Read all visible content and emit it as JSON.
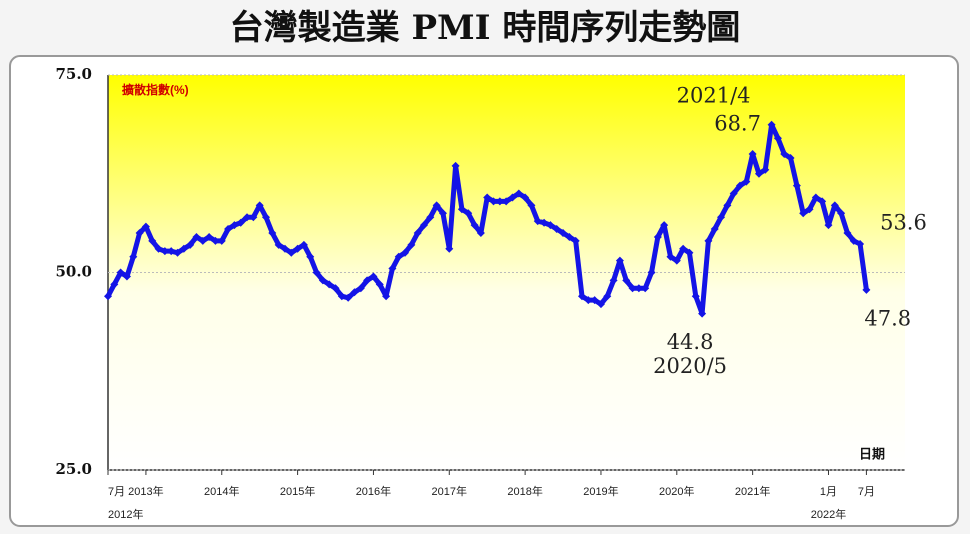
{
  "chart_data": {
    "type": "line",
    "title": "台灣製造業 PMI 時間序列走勢圖",
    "y_label": "擴散指數(%)",
    "x_label": "日期",
    "categories": [
      "7月",
      null,
      null,
      null,
      null,
      null,
      "2013年",
      null,
      null,
      null,
      null,
      null,
      null,
      null,
      null,
      null,
      null,
      null,
      "2014年",
      null,
      null,
      null,
      null,
      null,
      null,
      null,
      null,
      null,
      null,
      null,
      "2015年",
      null,
      null,
      null,
      null,
      null,
      null,
      null,
      null,
      null,
      null,
      null,
      "2016年",
      null,
      null,
      null,
      null,
      null,
      null,
      null,
      null,
      null,
      null,
      null,
      "2017年",
      null,
      null,
      null,
      null,
      null,
      null,
      null,
      null,
      null,
      null,
      null,
      "2018年",
      null,
      null,
      null,
      null,
      null,
      null,
      null,
      null,
      null,
      null,
      null,
      "2019年",
      null,
      null,
      null,
      null,
      null,
      null,
      null,
      null,
      null,
      null,
      null,
      "2020年",
      null,
      null,
      null,
      null,
      null,
      null,
      null,
      null,
      null,
      null,
      null,
      "2021年",
      null,
      null,
      null,
      null,
      null,
      null,
      null,
      null,
      null,
      null,
      null,
      "1月",
      null,
      null,
      null,
      null,
      null,
      "7月"
    ],
    "category_years": [
      "2012年",
      null,
      null,
      null,
      null,
      null,
      null,
      null,
      null,
      null,
      null,
      null,
      null,
      null,
      null,
      null,
      null,
      null,
      null,
      null,
      null,
      null,
      null,
      null,
      null,
      null,
      null,
      null,
      null,
      null,
      null,
      null,
      null,
      null,
      null,
      null,
      null,
      null,
      null,
      null,
      null,
      null,
      null,
      null,
      null,
      null,
      null,
      null,
      null,
      null,
      null,
      null,
      null,
      null,
      null,
      null,
      null,
      null,
      null,
      null,
      null,
      null,
      null,
      null,
      null,
      null,
      null,
      null,
      null,
      null,
      null,
      null,
      null,
      null,
      null,
      null,
      null,
      null,
      null,
      null,
      null,
      null,
      null,
      null,
      null,
      null,
      null,
      null,
      null,
      null,
      null,
      null,
      null,
      null,
      null,
      null,
      null,
      null,
      null,
      null,
      null,
      null,
      null,
      null,
      null,
      null,
      null,
      null,
      null,
      null,
      null,
      null,
      null,
      null,
      "2022年",
      null,
      null,
      null,
      null,
      null,
      null
    ],
    "values": [
      47,
      48.5,
      50,
      49.5,
      52,
      55,
      55.8,
      54,
      53,
      52.7,
      52.7,
      52.5,
      53,
      53.5,
      54.5,
      54,
      54.5,
      54,
      54,
      55.5,
      56,
      56.3,
      57,
      57,
      58.5,
      57,
      55,
      53.5,
      53,
      52.5,
      53,
      53.5,
      52,
      50,
      49,
      48.5,
      48,
      47,
      46.8,
      47.5,
      48,
      49,
      49.5,
      48.5,
      47,
      50.5,
      52,
      52.5,
      53.5,
      55,
      56,
      57,
      58.5,
      57.5,
      53,
      63.5,
      58,
      57.5,
      56,
      55,
      59.5,
      59,
      59,
      59,
      59.5,
      60,
      59.5,
      58.5,
      56.5,
      56.3,
      56,
      55.5,
      55,
      54.5,
      54,
      47,
      46.5,
      46.5,
      46,
      47,
      49,
      51.5,
      49,
      48,
      48,
      48,
      50,
      54.5,
      56,
      52,
      51.5,
      53,
      52.5,
      47,
      44.8,
      54,
      55.5,
      57,
      58.5,
      60,
      61,
      61.5,
      65,
      62.5,
      63,
      68.7,
      67,
      65,
      64.5,
      61,
      57.5,
      58,
      59.5,
      59,
      56,
      58.5,
      57.5,
      55,
      54,
      53.6,
      47.8
    ],
    "value_labels": [
      null,
      null,
      null,
      null,
      null,
      null,
      null,
      null,
      null,
      null,
      null,
      null,
      null,
      null,
      null,
      null,
      null,
      null,
      null,
      null,
      null,
      null,
      null,
      null,
      null,
      null,
      null,
      null,
      null,
      null,
      null,
      null,
      null,
      null,
      null,
      null,
      null,
      null,
      null,
      null,
      null,
      null,
      null,
      null,
      null,
      null,
      null,
      null,
      null,
      null,
      null,
      null,
      null,
      null,
      null,
      null,
      null,
      null,
      null,
      null,
      null,
      null,
      null,
      null,
      null,
      null,
      null,
      null,
      null,
      null,
      null,
      null,
      null,
      null,
      null,
      null,
      null,
      null,
      null,
      null,
      null,
      null,
      null,
      null,
      null,
      null,
      null,
      null,
      null,
      null,
      null,
      null,
      null,
      null,
      "44.8",
      null,
      null,
      null,
      null,
      null,
      null,
      null,
      null,
      null,
      null,
      "68.7",
      null,
      null,
      null,
      null,
      null,
      null,
      null,
      null,
      null,
      null,
      null,
      null,
      null,
      "53.6",
      "47.8"
    ],
    "date_labels": [
      null,
      null,
      null,
      null,
      null,
      null,
      null,
      null,
      null,
      null,
      null,
      null,
      null,
      null,
      null,
      null,
      null,
      null,
      null,
      null,
      null,
      null,
      null,
      null,
      null,
      null,
      null,
      null,
      null,
      null,
      null,
      null,
      null,
      null,
      null,
      null,
      null,
      null,
      null,
      null,
      null,
      null,
      null,
      null,
      null,
      null,
      null,
      null,
      null,
      null,
      null,
      null,
      null,
      null,
      null,
      null,
      null,
      null,
      null,
      null,
      null,
      null,
      null,
      null,
      null,
      null,
      null,
      null,
      null,
      null,
      null,
      null,
      null,
      null,
      null,
      null,
      null,
      null,
      null,
      null,
      null,
      null,
      null,
      null,
      null,
      null,
      null,
      null,
      null,
      null,
      null,
      null,
      null,
      null,
      "2020/5",
      null,
      null,
      null,
      null,
      null,
      null,
      null,
      null,
      null,
      null,
      "2021/4",
      null,
      null,
      null,
      null,
      null,
      null,
      null,
      null,
      null,
      null,
      null,
      null,
      null,
      null,
      null
    ],
    "color": "#1414e6",
    "ylim": [
      25,
      75
    ],
    "yticks": [
      {
        "value": 25,
        "label": "25.0"
      },
      {
        "value": 50,
        "label": "50.0"
      },
      {
        "value": 75,
        "label": "75.0"
      }
    ],
    "grid": true
  }
}
